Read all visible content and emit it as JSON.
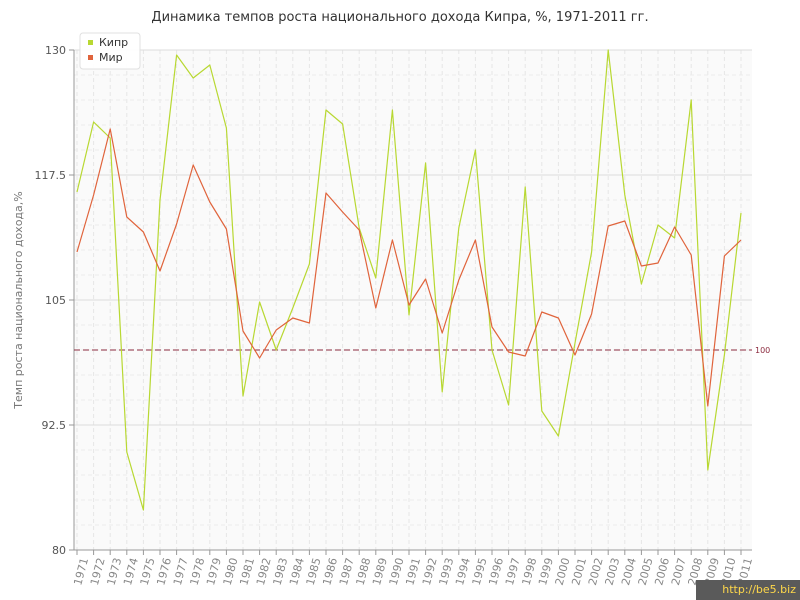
{
  "chart_data": {
    "type": "line",
    "title": "Динамика темпов роста национального дохода Кипра, %, 1971-2011 гг.",
    "ylabel": "Темп роста национального дохода,%",
    "xlabel": "",
    "ylim": [
      80,
      130
    ],
    "yticks": [
      "80",
      "92.5",
      "105",
      "117.5",
      "130"
    ],
    "grid": true,
    "legend": "top-left",
    "categories": [
      "1971",
      "1972",
      "1973",
      "1974",
      "1975",
      "1976",
      "1977",
      "1978",
      "1979",
      "1980",
      "1981",
      "1982",
      "1983",
      "1984",
      "1985",
      "1986",
      "1987",
      "1988",
      "1989",
      "1990",
      "1991",
      "1992",
      "1993",
      "1994",
      "1995",
      "1996",
      "1997",
      "1998",
      "1999",
      "2000",
      "2001",
      "2002",
      "2003",
      "2004",
      "2005",
      "2006",
      "2007",
      "2008",
      "2009",
      "2010",
      "2011"
    ],
    "series": [
      {
        "name": "Кипр",
        "color": "#b8d832",
        "values": [
          115.8,
          122.8,
          121.2,
          89.8,
          84.0,
          115.0,
          129.5,
          127.2,
          128.5,
          122.2,
          95.4,
          104.8,
          100.0,
          104.2,
          108.6,
          124.0,
          122.6,
          112.2,
          107.2,
          124.0,
          103.5,
          118.7,
          95.8,
          112.2,
          120.0,
          100.0,
          94.5,
          116.3,
          93.9,
          91.4,
          100.7,
          109.8,
          130.0,
          115.5,
          106.6,
          112.5,
          111.2,
          125.0,
          88.0,
          99.5,
          113.7
        ]
      },
      {
        "name": "Мир",
        "color": "#e0643c",
        "values": [
          109.8,
          115.5,
          122.1,
          113.3,
          111.8,
          107.9,
          112.6,
          118.5,
          114.8,
          112.1,
          101.9,
          99.2,
          102.0,
          103.2,
          102.7,
          115.7,
          113.8,
          112.0,
          104.2,
          111.0,
          104.5,
          107.1,
          101.7,
          107.0,
          111.0,
          102.3,
          99.8,
          99.4,
          103.8,
          103.2,
          99.5,
          103.6,
          112.4,
          112.9,
          108.4,
          108.7,
          112.3,
          109.5,
          94.4,
          109.4,
          111.0
        ]
      }
    ],
    "reference_line": {
      "value": 100,
      "label": "100",
      "color": "#8b2a3e"
    }
  },
  "watermark": "http://be5.biz"
}
